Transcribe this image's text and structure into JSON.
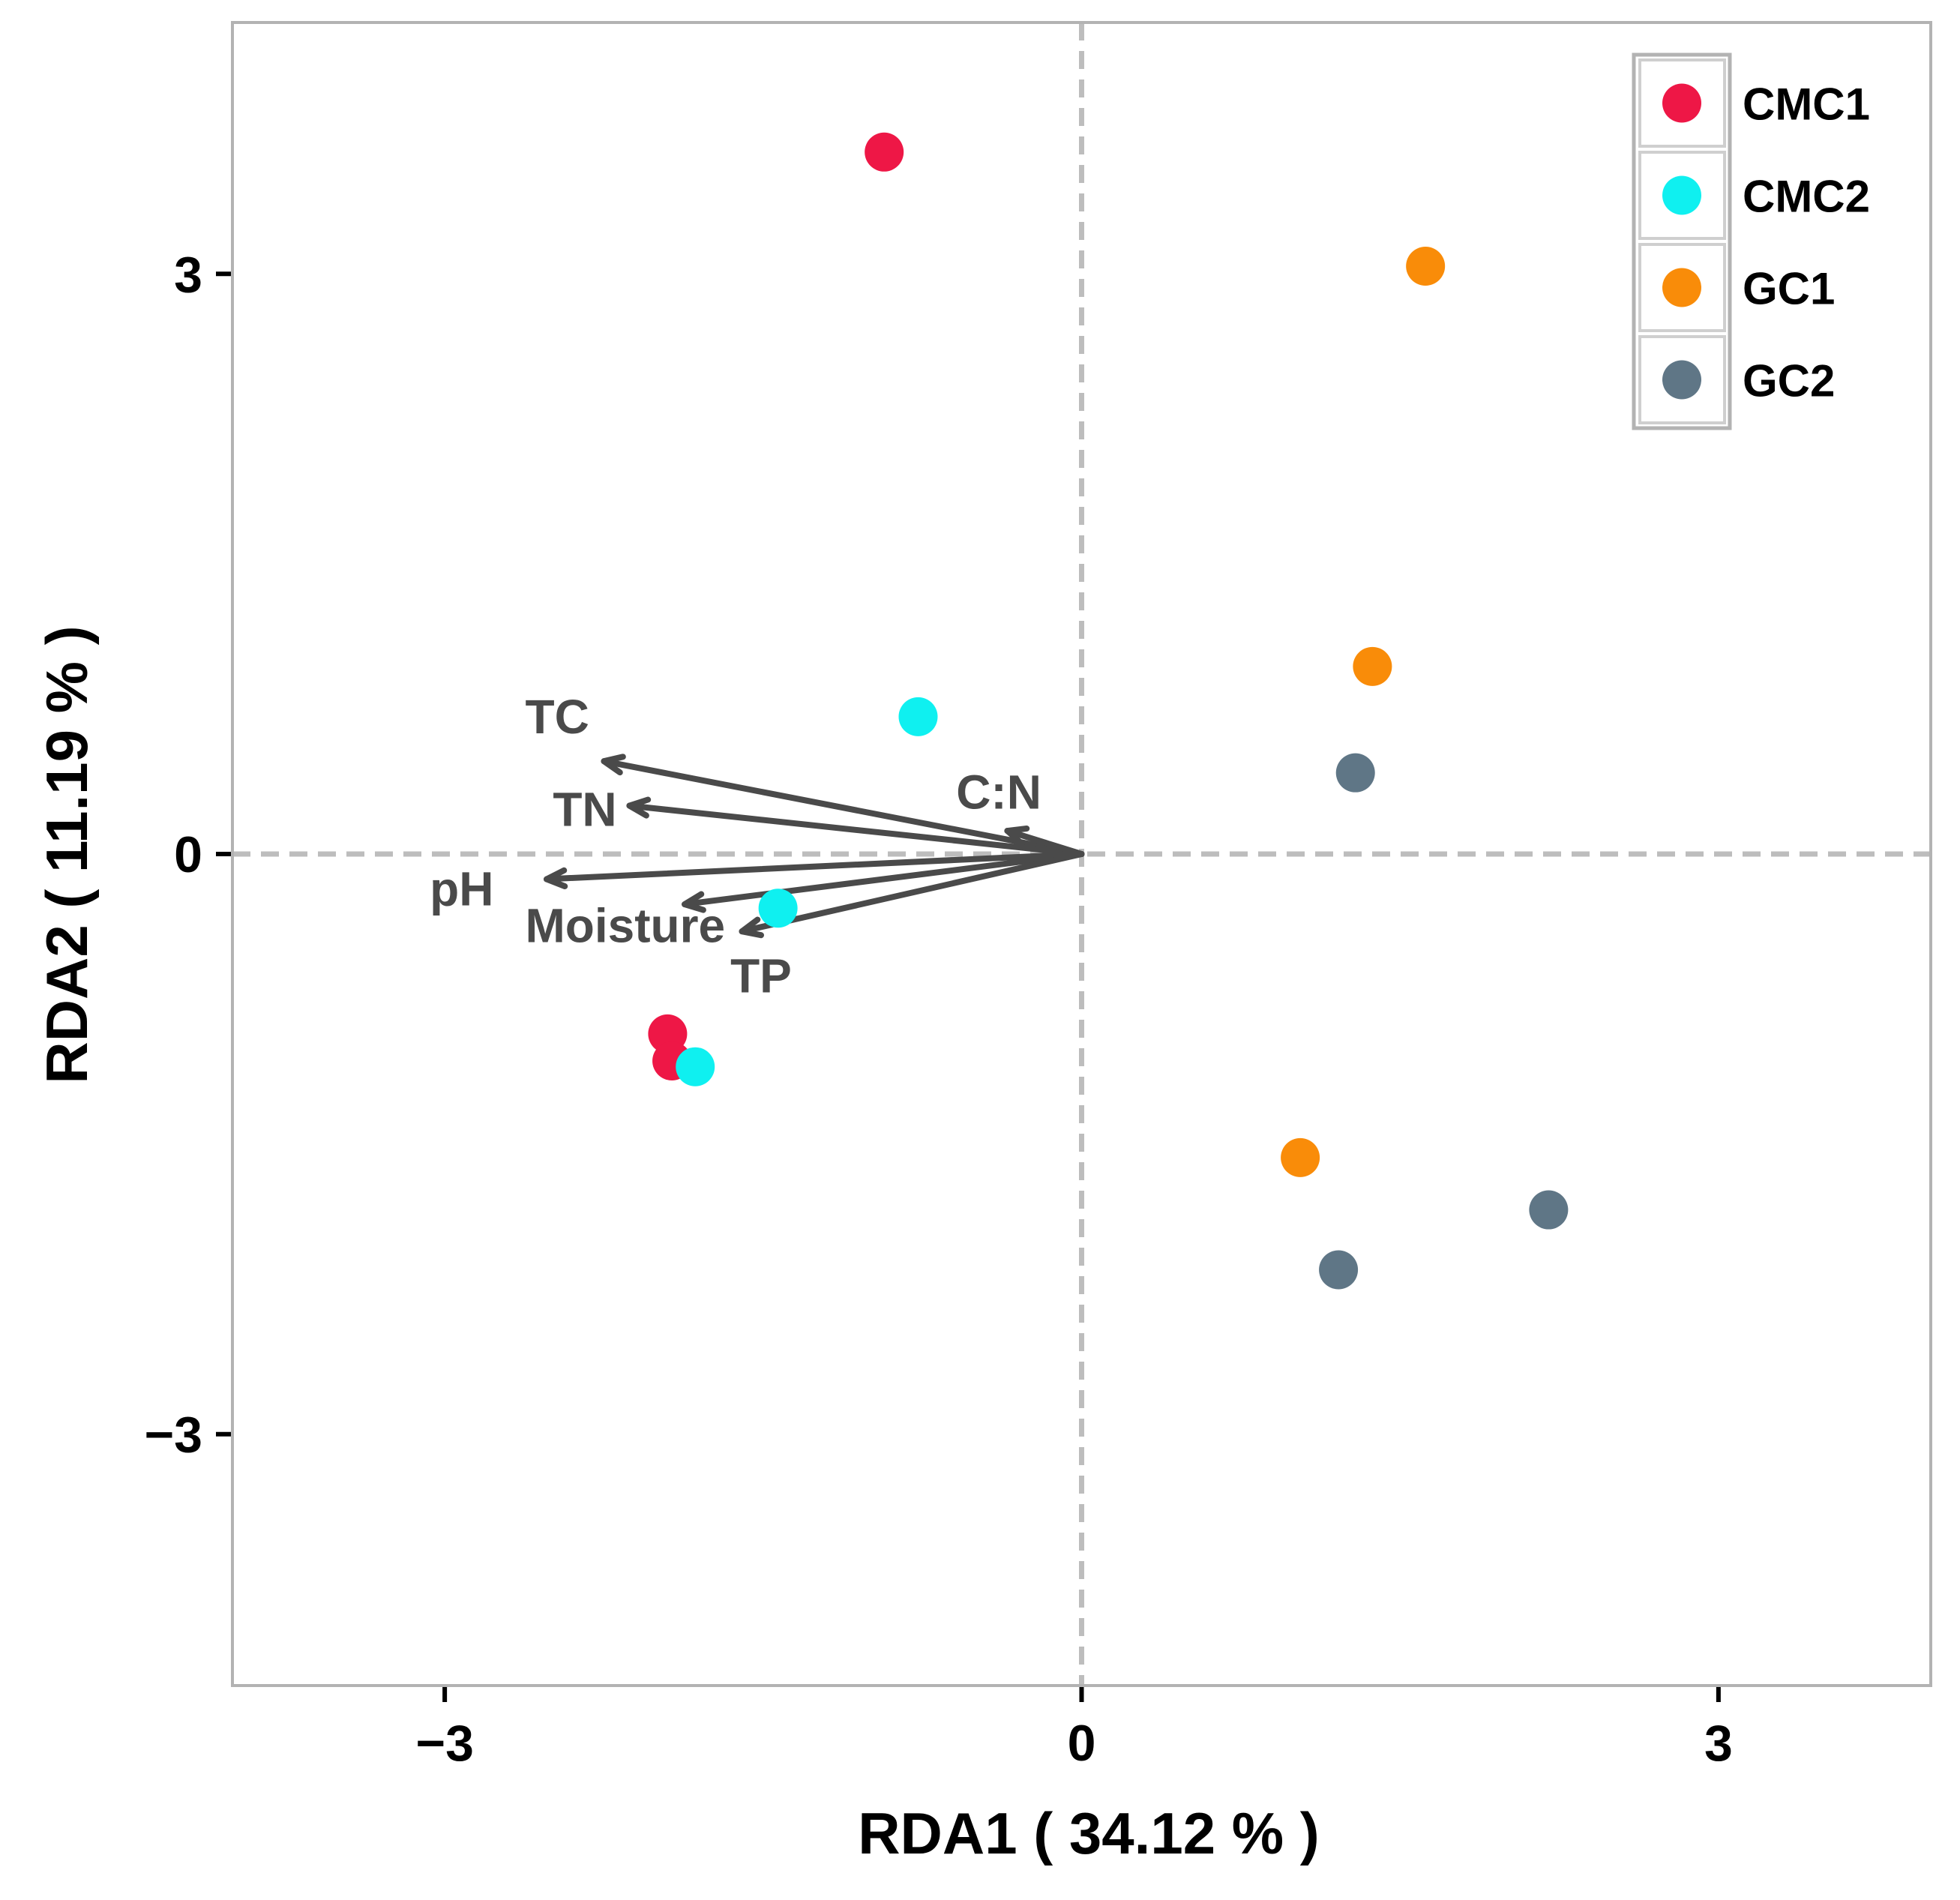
{
  "chart_data": {
    "type": "scatter",
    "subtype": "rda-biplot",
    "xlabel": "RDA1 ( 34.12 % )",
    "ylabel": "RDA2 ( 11.19 % )",
    "xlim": [
      -4.0,
      4.0
    ],
    "ylim": [
      -4.3,
      4.3
    ],
    "xticks": [
      -3,
      0,
      3
    ],
    "yticks": [
      -3,
      0,
      3
    ],
    "xtick_labels": [
      "−3",
      "0",
      "3"
    ],
    "ytick_labels": [
      "−3",
      "0",
      "3"
    ],
    "reference_lines": {
      "x": 0,
      "y": 0,
      "style": "dashed"
    },
    "grid": false,
    "legend_position": "top-right",
    "series": [
      {
        "name": "CMC1",
        "color": "#ee1746",
        "points": [
          {
            "x": -0.93,
            "y": 3.63
          },
          {
            "x": -1.95,
            "y": -0.93
          },
          {
            "x": -1.93,
            "y": -1.07
          }
        ]
      },
      {
        "name": "CMC2",
        "color": "#0ff0f0",
        "points": [
          {
            "x": -0.77,
            "y": 0.71
          },
          {
            "x": -1.43,
            "y": -0.28
          },
          {
            "x": -1.82,
            "y": -1.1
          }
        ]
      },
      {
        "name": "GC1",
        "color": "#f98c09",
        "points": [
          {
            "x": 1.62,
            "y": 3.04
          },
          {
            "x": 1.37,
            "y": 0.97
          },
          {
            "x": 1.03,
            "y": -1.57
          }
        ]
      },
      {
        "name": "GC2",
        "color": "#5f7686",
        "points": [
          {
            "x": 1.29,
            "y": 0.42
          },
          {
            "x": 2.2,
            "y": -1.84
          },
          {
            "x": 1.21,
            "y": -2.15
          }
        ]
      }
    ],
    "vectors": [
      {
        "name": "TC",
        "x": -2.25,
        "y": 0.48,
        "label_x": -2.47,
        "label_y": 0.71
      },
      {
        "name": "TN",
        "x": -2.13,
        "y": 0.25,
        "label_x": -2.34,
        "label_y": 0.23
      },
      {
        "name": "pH",
        "x": -2.52,
        "y": -0.13,
        "label_x": -2.92,
        "label_y": -0.18
      },
      {
        "name": "Moisture",
        "x": -1.87,
        "y": -0.26,
        "label_x": -2.15,
        "label_y": -0.37
      },
      {
        "name": "TP",
        "x": -1.6,
        "y": -0.4,
        "label_x": -1.51,
        "label_y": -0.63
      },
      {
        "name": "C:N",
        "x": -0.35,
        "y": 0.12,
        "label_x": -0.39,
        "label_y": 0.32
      }
    ],
    "vector_color": "#4a4a4a"
  }
}
